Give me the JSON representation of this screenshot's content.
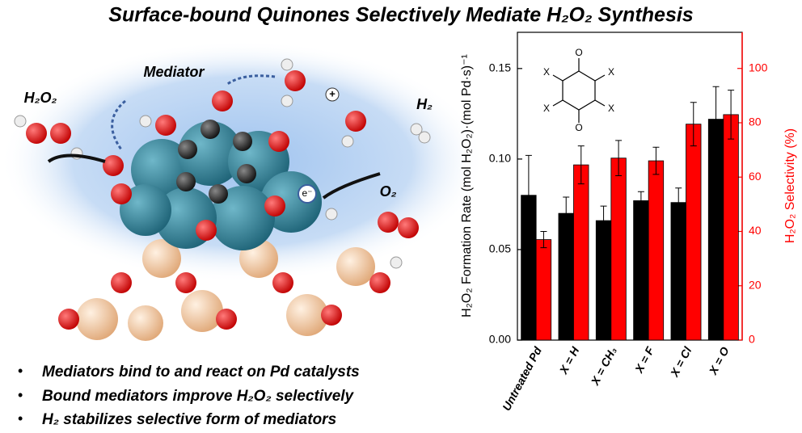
{
  "title": "Surface-bound Quinones Selectively Mediate H₂O₂ Synthesis",
  "illustration": {
    "mediator": "Mediator",
    "h2o2": "H₂O₂",
    "h2": "H₂",
    "o2": "O₂",
    "electron": "e⁻",
    "proton": "+"
  },
  "bullets": [
    "Mediators bind to and react on Pd catalysts",
    "Bound mediators improve H₂O₂ selectively",
    "H₂ stabilizes selective form of mediators"
  ],
  "chart_data": {
    "type": "bar",
    "ylabel": "H₂O₂ Formation Rate (mol H₂O₂)·(mol Pd·s)⁻¹",
    "y2label": "H₂O₂ Selectivity (%)",
    "structure_labels": [
      "X",
      "O"
    ],
    "categories": [
      "Untreated Pd",
      "X = H",
      "X = CH₃",
      "X = F",
      "X = Cl",
      "X = O"
    ],
    "series": [
      {
        "name": "Formation Rate",
        "color": "#000000",
        "values": [
          0.08,
          0.07,
          0.066,
          0.077,
          0.076,
          0.122
        ],
        "errors": [
          0.022,
          0.009,
          0.008,
          0.005,
          0.008,
          0.018
        ]
      },
      {
        "name": "Selectivity",
        "color": "#ff0000",
        "axis": "y2",
        "values": [
          37,
          64.5,
          67,
          66,
          79.5,
          83
        ],
        "errors": [
          3,
          7,
          6.5,
          5,
          8,
          9
        ]
      }
    ],
    "ylim": [
      0,
      0.17
    ],
    "yticks": [
      {
        "value": 0,
        "label": "0.00"
      },
      0.05,
      {
        "value": 0.1,
        "label": "0.10"
      },
      0.15
    ],
    "y2lim": [
      0,
      113.3
    ],
    "y2ticks": [
      0,
      20,
      40,
      60,
      80,
      100
    ]
  }
}
